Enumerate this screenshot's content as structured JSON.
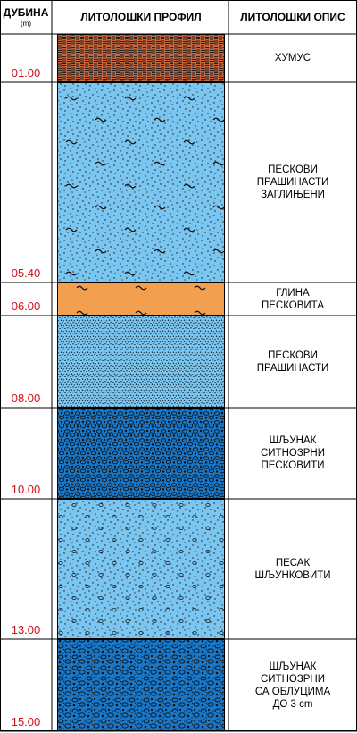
{
  "header": {
    "depth_title": "ДУБИНА",
    "depth_unit": "(m)",
    "profile_title": "ЛИТОЛОШКИ ПРОФИЛ",
    "description_title": "ЛИТОЛОШКИ ОПИС"
  },
  "layers": [
    {
      "depth_label": "01.00",
      "description": "ХУМУС",
      "fill": "#c8663a",
      "pattern": "humus-hatch-pattern"
    },
    {
      "depth_label": "05.40",
      "description": "ПЕСКОВИ\nПРАШИНАСТИ\nЗАГЛИЊЕНИ",
      "fill": "#7ac6f0",
      "pattern": "sparse-dots-tilde-pattern"
    },
    {
      "depth_label": "06.00",
      "description": "ГЛИНА\nПЕСКОВИТА",
      "fill": "#f2a050",
      "pattern": "tilde-pattern"
    },
    {
      "depth_label": "08.00",
      "description": "ПЕСКОВИ\nПРАШИНАСТИ",
      "fill": "#7ac6f0",
      "pattern": "dense-dots-pattern"
    },
    {
      "depth_label": "10.00",
      "description": "ШЉУНАК\nСИТНОЗРНИ\nПЕСКОВИТИ",
      "fill": "#1877c8",
      "pattern": "gravel-dense-pattern"
    },
    {
      "depth_label": "13.00",
      "description": "ПЕСАК\nШЉУНКОВИТИ",
      "fill": "#7ac6f0",
      "pattern": "dots-circles-pattern"
    },
    {
      "depth_label": "15.00",
      "description": "ШЉУНАК\nСИТНОЗРНИ\nСА ОБЛУЦИМА\nДО 3 cm",
      "fill": "#1877c8",
      "pattern": "gravel-pattern"
    }
  ]
}
